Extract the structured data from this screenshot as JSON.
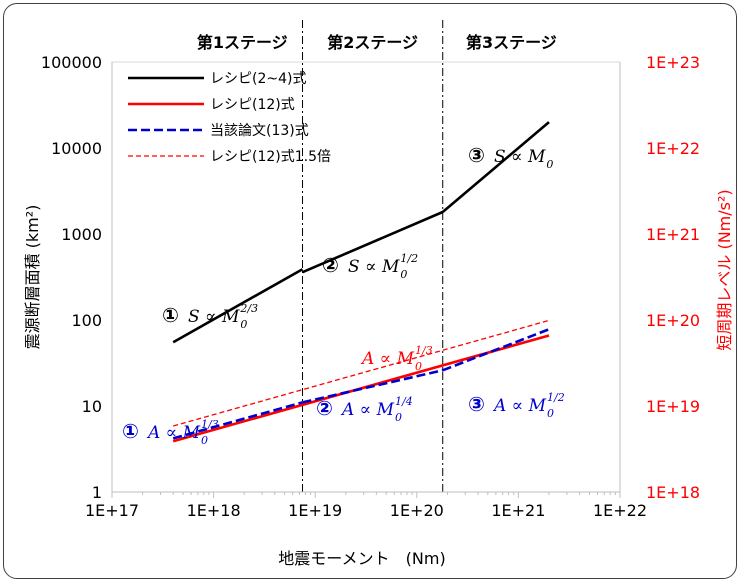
{
  "chart_data": {
    "type": "line",
    "xlabel": "地震モーメント　(Nm)",
    "ylabel": "震源断層面積 (km²)",
    "y2label": "短周期レベル (Nm/s²)",
    "x_scale": "log",
    "y_scale": "log",
    "y2_scale": "log",
    "xlim": [
      1e+17,
      1e+22
    ],
    "ylim": [
      1,
      100000
    ],
    "y2lim": [
      1e+18,
      1e+23
    ],
    "x_ticks": [
      "1E+17",
      "1E+18",
      "1E+19",
      "1E+20",
      "1E+21",
      "1E+22"
    ],
    "y_ticks": [
      "1",
      "10",
      "100",
      "1000",
      "10000",
      "100000"
    ],
    "y2_ticks": [
      "1E+18",
      "1E+19",
      "1E+20",
      "1E+21",
      "1E+22",
      "1E+23"
    ],
    "grid": false,
    "legend_position": "top-left",
    "stage_boundaries": [
      7.5e+18,
      1.8e+20
    ],
    "stages": [
      "第1ステージ",
      "第2ステージ",
      "第3ステージ"
    ],
    "series": [
      {
        "name": "レシピ(2~4)式",
        "axis": "left",
        "color": "#000000",
        "dash": "solid",
        "segments": [
          [
            [
              4e+17,
              55
            ],
            [
              7.5e+18,
              390
            ]
          ],
          [
            [
              7.5e+18,
              360
            ],
            [
              1.8e+20,
              1800
            ]
          ],
          [
            [
              1.8e+20,
              1800
            ],
            [
              2e+21,
              20000
            ]
          ]
        ]
      },
      {
        "name": "レシピ(12)式",
        "axis": "right",
        "color": "#ff0000",
        "dash": "solid",
        "segments": [
          [
            [
              4e+17,
              3.9e+18
            ],
            [
              2e+21,
              6.6e+19
            ]
          ]
        ]
      },
      {
        "name": "当該論文(13)式",
        "axis": "right",
        "color": "#0000cc",
        "dash": "long",
        "segments": [
          [
            [
              4e+17,
              4.2e+18
            ],
            [
              7.5e+18,
              1.1e+19
            ]
          ],
          [
            [
              7.5e+18,
              1.1e+19
            ],
            [
              1.8e+20,
              2.6e+19
            ]
          ],
          [
            [
              1.8e+20,
              2.6e+19
            ],
            [
              2e+21,
              7.8e+19
            ]
          ]
        ]
      },
      {
        "name": "レシピ(12)式1.5倍",
        "axis": "right",
        "color": "#ff0000",
        "dash": "short",
        "segments": [
          [
            [
              4e+17,
              5.85e+18
            ],
            [
              2e+21,
              9.9e+19
            ]
          ]
        ]
      }
    ],
    "annotations": [
      {
        "circle": "①",
        "text": "S ∝ M",
        "sub": "0",
        "sup": "2/3",
        "color": "#000000"
      },
      {
        "circle": "②",
        "text": "S ∝ M",
        "sub": "0",
        "sup": "1/2",
        "color": "#000000"
      },
      {
        "circle": "③",
        "text": "S ∝ M",
        "sub": "0",
        "sup": "",
        "color": "#000000"
      },
      {
        "circle": "",
        "text": "A ∝ M",
        "sub": "0",
        "sup": "1/3",
        "color": "#ff0000"
      },
      {
        "circle": "①",
        "text": "A ∝ M",
        "sub": "0",
        "sup": "1/3",
        "color": "#0000cc"
      },
      {
        "circle": "②",
        "text": "A ∝ M",
        "sub": "0",
        "sup": "1/4",
        "color": "#0000cc"
      },
      {
        "circle": "③",
        "text": "A ∝ M",
        "sub": "0",
        "sup": "1/2",
        "color": "#0000cc"
      }
    ]
  }
}
